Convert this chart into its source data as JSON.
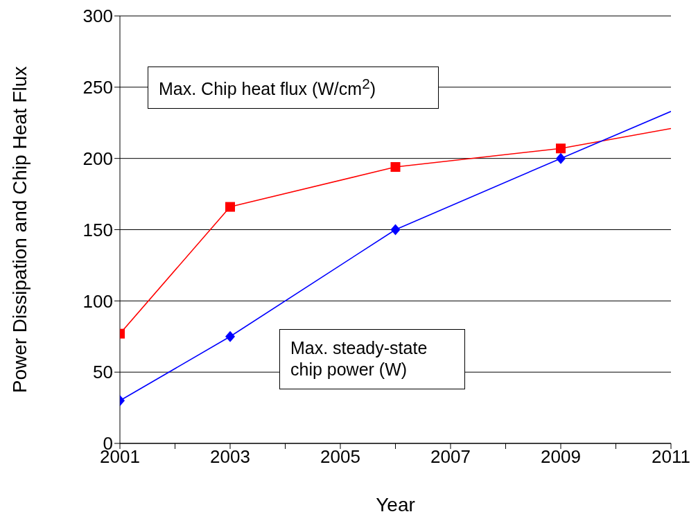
{
  "chart_data": {
    "type": "line",
    "xlabel": "Year",
    "ylabel": "Power Dissipation  and  Chip Heat Flux",
    "xlim": [
      2001,
      2011
    ],
    "xticks": [
      2001,
      {
        "value": 2002,
        "label": null
      },
      2003,
      {
        "value": 2004,
        "label": null
      },
      2005,
      {
        "value": 2006,
        "label": null
      },
      2007,
      {
        "value": 2008,
        "label": null
      },
      2009,
      {
        "value": 2010,
        "label": null
      },
      2011
    ],
    "ylim": [
      0,
      300
    ],
    "yticks": [
      0,
      50,
      100,
      150,
      200,
      250,
      300
    ],
    "grid": "y",
    "legend": false,
    "series": [
      {
        "color": "#ff0000",
        "marker": "square",
        "x": [
          2001,
          2003,
          2006,
          2009
        ],
        "values": [
          77,
          166,
          194,
          207
        ]
      },
      {
        "color": "#ff0000",
        "marker": "none",
        "x": [
          2009,
          2011
        ],
        "values": [
          207,
          221
        ]
      },
      {
        "color": "#0000ff",
        "marker": "diamond",
        "x": [
          2001,
          2003,
          2006,
          2009
        ],
        "values": [
          30,
          75,
          150,
          200
        ]
      },
      {
        "color": "#0000ff",
        "marker": "none",
        "x": [
          2009,
          2011
        ],
        "values": [
          200,
          233
        ]
      }
    ],
    "annotations": [
      "Max. Chip heat flux (W/cm$^{2}$)",
      "Max. steady-state\nchip power (W)"
    ]
  }
}
